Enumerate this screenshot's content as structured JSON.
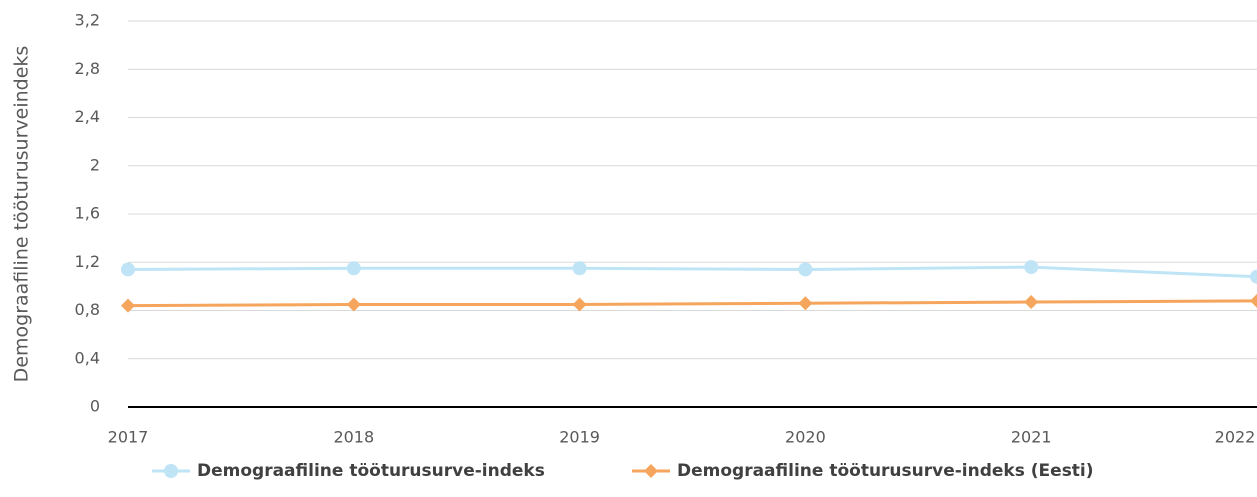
{
  "chart_data": {
    "type": "line",
    "ylabel": "Demograafiline tööturusurveindeks",
    "categories": [
      "2017",
      "2018",
      "2019",
      "2020",
      "2021",
      "2022"
    ],
    "series": [
      {
        "name": "Demograafiline tööturusurve-indeks",
        "color": "#bfe4f6",
        "marker": "circle",
        "values": [
          1.14,
          1.15,
          1.15,
          1.14,
          1.16,
          1.08
        ]
      },
      {
        "name": "Demograafiline tööturusurve-indeks (Eesti)",
        "color": "#f5a55c",
        "marker": "diamond",
        "values": [
          0.84,
          0.85,
          0.85,
          0.86,
          0.87,
          0.88
        ]
      }
    ],
    "ylim": [
      0,
      3.2
    ],
    "yticks": [
      0,
      {
        "value": 0.4,
        "label": "0,4"
      },
      {
        "value": 0.8,
        "label": "0,8"
      },
      {
        "value": 1.2,
        "label": "1,2"
      },
      {
        "value": 1.6,
        "label": "1,6"
      },
      2,
      {
        "value": 2.4,
        "label": "2,4"
      },
      {
        "value": 2.8,
        "label": "2,8"
      },
      {
        "value": 3.2,
        "label": "3,2"
      }
    ],
    "grid": true,
    "legend": "bottom"
  }
}
